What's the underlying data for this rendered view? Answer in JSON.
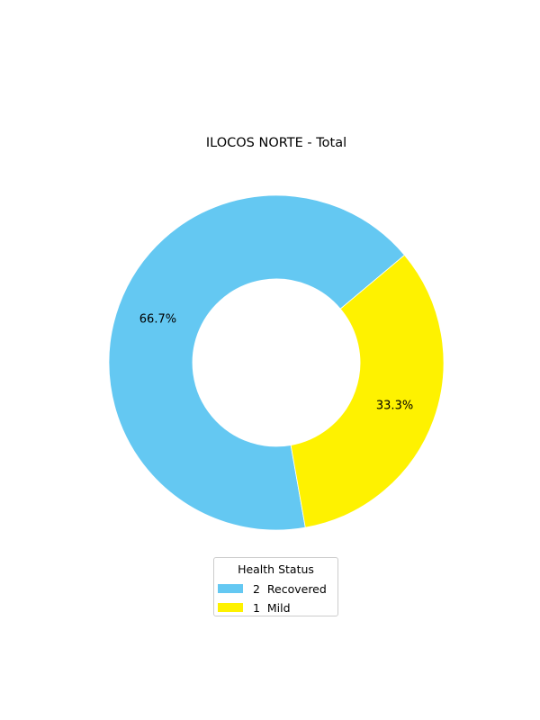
{
  "chart_data": {
    "type": "pie",
    "variant": "donut",
    "title": "ILOCOS NORTE - Total",
    "categories": [
      "Recovered",
      "Mild"
    ],
    "values": [
      2,
      1
    ],
    "percent_labels": [
      "66.7%",
      "33.3%"
    ],
    "colors": [
      "#64c8f2",
      "#fef200"
    ],
    "legend": {
      "title": "Health Status",
      "placement": "bottom-center",
      "entries": [
        {
          "label": "2  Recovered",
          "color": "#64c8f2"
        },
        {
          "label": "1  Mild",
          "color": "#fef200"
        }
      ]
    }
  }
}
